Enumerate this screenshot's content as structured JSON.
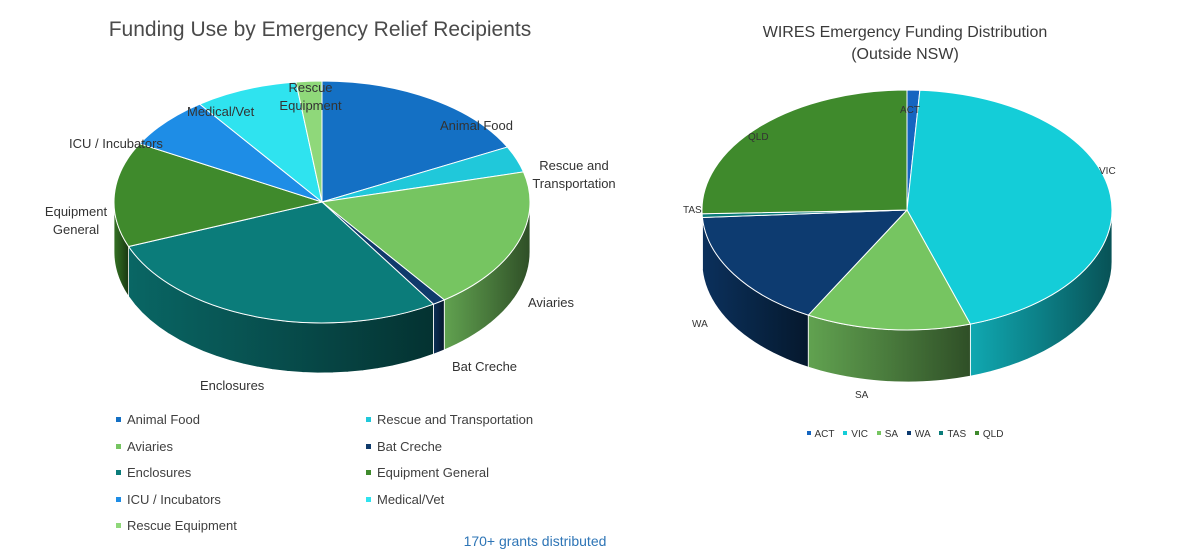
{
  "chart_data": [
    {
      "type": "pie",
      "style": "3d",
      "title": "Funding Use by Emergency Relief Recipients",
      "legend_position": "bottom",
      "slices": [
        {
          "label": "Animal Food",
          "value": 17.5,
          "color": "#1470c4"
        },
        {
          "label": "Rescue and Transportation",
          "value": 3.5,
          "color": "#20c8da"
        },
        {
          "label": "Aviaries",
          "value": 19.0,
          "color": "#76c561"
        },
        {
          "label": "Bat Creche",
          "value": 1.0,
          "color": "#0f3a6b"
        },
        {
          "label": "Enclosures",
          "value": 28.0,
          "color": "#0b7c7a"
        },
        {
          "label": "Equipment General",
          "value": 14.0,
          "color": "#3f8a2c"
        },
        {
          "label": "ICU / Incubators",
          "value": 7.0,
          "color": "#1e8de6"
        },
        {
          "label": "Medical/Vet",
          "value": 8.0,
          "color": "#2fe3ef"
        },
        {
          "label": "Rescue Equipment",
          "value": 2.0,
          "color": "#8fd87a"
        }
      ]
    },
    {
      "type": "pie",
      "style": "3d",
      "title": "WIRES Emergency Funding Distribution\n(Outside NSW)",
      "legend_position": "bottom",
      "slices": [
        {
          "label": "ACT",
          "value": 1.0,
          "color": "#1565c0"
        },
        {
          "label": "VIC",
          "value": 44.0,
          "color": "#14cdd8"
        },
        {
          "label": "SA",
          "value": 13.0,
          "color": "#76c561"
        },
        {
          "label": "WA",
          "value": 16.0,
          "color": "#0d3b70"
        },
        {
          "label": "TAS",
          "value": 0.5,
          "color": "#0b7c7a"
        },
        {
          "label": "QLD",
          "value": 25.5,
          "color": "#3f8a2c"
        }
      ]
    }
  ],
  "caption": "170+ grants distributed"
}
